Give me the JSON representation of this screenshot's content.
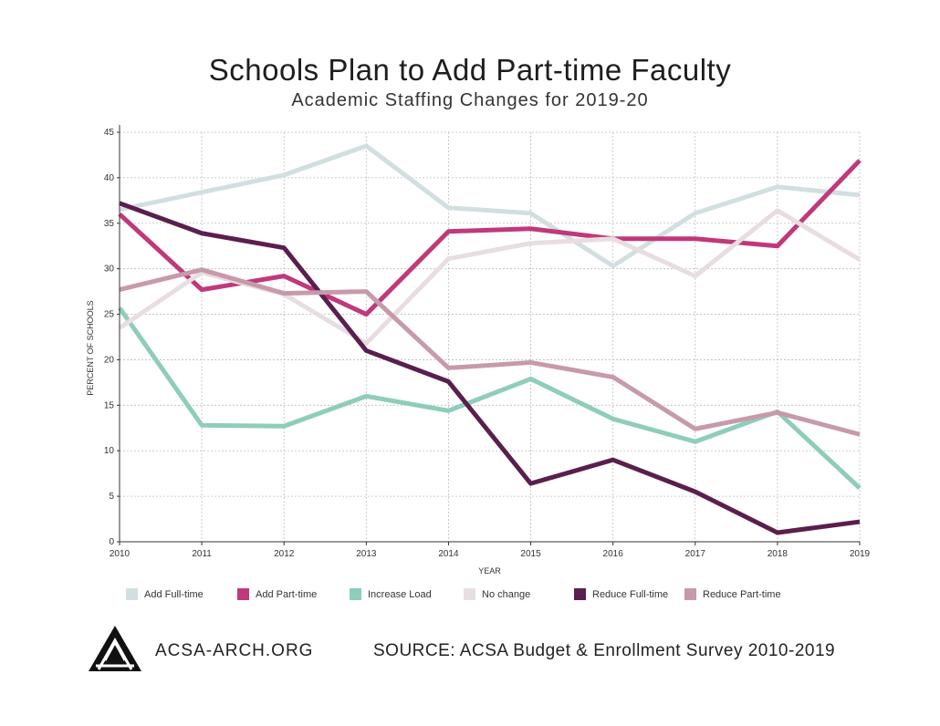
{
  "title": "Schools Plan to Add Part-time Faculty",
  "subtitle": "Academic Staffing Changes for 2019-20",
  "footer": {
    "site": "ACSA-ARCH.ORG",
    "source": "SOURCE: ACSA Budget & Enrollment Survey 2010-2019",
    "logo_icon": "acsa-triangle-logo-icon"
  },
  "chart_data": {
    "type": "line",
    "xlabel": "YEAR",
    "ylabel": "PERCENT OF SCHOOLS",
    "x": [
      "2010",
      "2011",
      "2012",
      "2013",
      "2014",
      "2015",
      "2016",
      "2017",
      "2018",
      "2019"
    ],
    "ylim": [
      0,
      45
    ],
    "yticks": [
      0,
      5,
      10,
      15,
      20,
      25,
      30,
      35,
      40,
      45
    ],
    "grid": true,
    "legend_position": "bottom",
    "series": [
      {
        "name": "Add Full-time",
        "color": "#d2dfe1",
        "values": [
          36.5,
          38.4,
          40.3,
          43.5,
          36.7,
          36.1,
          30.3,
          36.1,
          39.0,
          38.1
        ]
      },
      {
        "name": "Add Part-time",
        "color": "#c0397a",
        "values": [
          36.0,
          27.7,
          29.2,
          25.0,
          34.1,
          34.4,
          33.3,
          33.3,
          32.5,
          41.9
        ]
      },
      {
        "name": "Increase Load",
        "color": "#8ecdb9",
        "values": [
          25.7,
          12.8,
          12.7,
          16.0,
          14.4,
          17.9,
          13.5,
          11.0,
          14.3,
          5.9
        ]
      },
      {
        "name": "No change",
        "color": "#e8dde0",
        "values": [
          23.5,
          29.6,
          27.2,
          21.8,
          31.1,
          32.8,
          33.3,
          29.2,
          36.4,
          31.0
        ]
      },
      {
        "name": "Reduce Full-time",
        "color": "#5a1f4e",
        "values": [
          37.2,
          33.9,
          32.3,
          21.0,
          17.6,
          6.4,
          9.0,
          5.5,
          1.0,
          2.2
        ]
      },
      {
        "name": "Reduce Part-time",
        "color": "#c79aab",
        "values": [
          27.7,
          29.9,
          27.3,
          27.5,
          19.1,
          19.7,
          18.1,
          12.4,
          14.2,
          11.8
        ]
      }
    ]
  }
}
